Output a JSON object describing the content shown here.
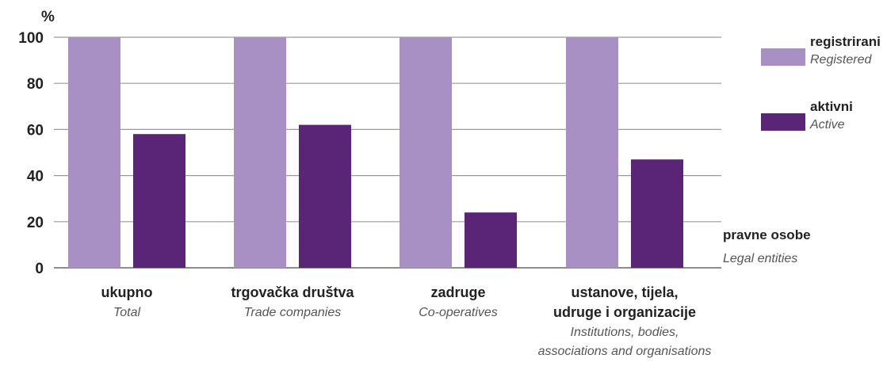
{
  "chart_data": {
    "type": "bar",
    "ylabel": "%",
    "ylim": [
      0,
      100
    ],
    "yticks": [
      0,
      20,
      40,
      60,
      80,
      100
    ],
    "grid": true,
    "legend_position": "right",
    "categories": [
      {
        "label": "ukupno",
        "sublabel": [
          "Total"
        ]
      },
      {
        "label": "trgovačka društva",
        "sublabel": [
          "Trade companies"
        ]
      },
      {
        "label": "zadruge",
        "sublabel": [
          "Co-operatives"
        ]
      },
      {
        "label": "ustanove, tijela,",
        "label2": "udruge i organizacije",
        "sublabel": [
          "Institutions, bodies,",
          "associations and organisations"
        ]
      }
    ],
    "series": [
      {
        "name": "registrirani",
        "subname": "Registered",
        "color": "#a88fc4",
        "values": [
          100,
          100,
          100,
          100
        ]
      },
      {
        "name": "aktivni",
        "subname": "Active",
        "color": "#5a2577",
        "values": [
          58,
          62,
          24,
          47
        ]
      }
    ],
    "annotation": {
      "label": "pravne osobe",
      "sublabel": "Legal entities"
    }
  }
}
